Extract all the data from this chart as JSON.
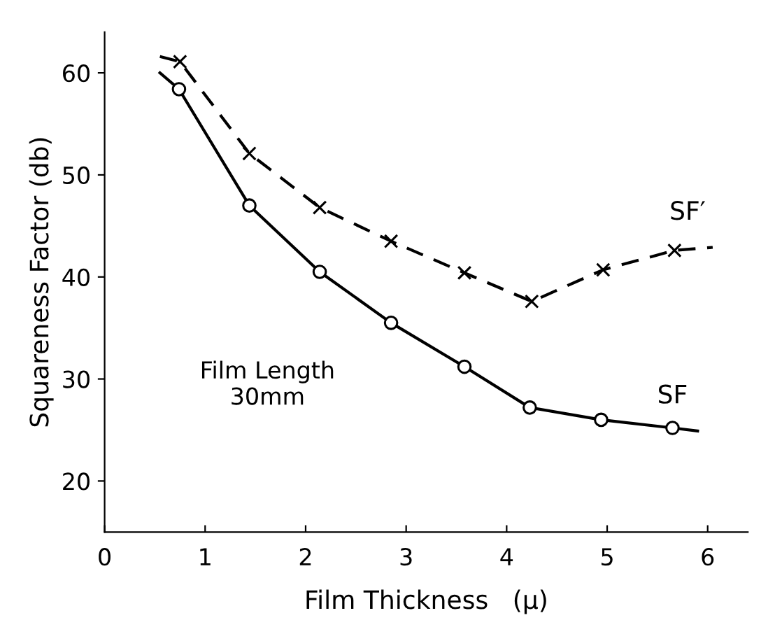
{
  "chart_data": {
    "type": "line",
    "xlabel": "Film Thickness   (μ)",
    "ylabel": "Squareness Factor (db)",
    "xlim": [
      0,
      6.4
    ],
    "ylim": [
      15,
      64
    ],
    "xticks": [
      0,
      1,
      2,
      3,
      4,
      5,
      6
    ],
    "yticks": [
      20,
      30,
      40,
      50,
      60
    ],
    "grid": false,
    "legend": false,
    "annotations": [
      "Film Length\n30mm"
    ],
    "series": [
      {
        "name": "SF′",
        "color": "#000000",
        "line_style": "dashed",
        "marker": "none",
        "x": [
          0.55,
          0.75,
          1.44,
          2.14,
          2.85,
          3.58,
          4.25,
          4.96,
          5.67,
          6.05
        ],
        "values": [
          61.6,
          61.1,
          52.1,
          46.8,
          43.5,
          40.4,
          37.6,
          40.7,
          42.6,
          42.9
        ]
      },
      {
        "name": "SF",
        "color": "#000000",
        "line_style": "solid",
        "marker": "none",
        "x": [
          0.55,
          0.74,
          1.44,
          2.14,
          2.85,
          3.58,
          4.23,
          4.94,
          5.65,
          5.9
        ],
        "values": [
          60.0,
          58.4,
          47.0,
          40.5,
          35.5,
          31.2,
          27.2,
          26.0,
          25.2,
          24.9
        ]
      },
      {
        "type": "scatter",
        "color": "#000000",
        "marker": "cross",
        "x": [
          0.75,
          1.44,
          2.14,
          2.85,
          3.58,
          4.25,
          4.96,
          5.67
        ],
        "values": [
          61.1,
          52.1,
          46.8,
          43.5,
          40.4,
          37.6,
          40.7,
          42.6
        ]
      },
      {
        "type": "scatter",
        "color": "#000000",
        "marker": "circle",
        "x": [
          0.74,
          1.44,
          2.14,
          2.85,
          3.58,
          4.23,
          4.94,
          5.65
        ],
        "values": [
          58.4,
          47.0,
          40.5,
          35.5,
          31.2,
          27.2,
          26.0,
          25.2
        ]
      }
    ]
  }
}
